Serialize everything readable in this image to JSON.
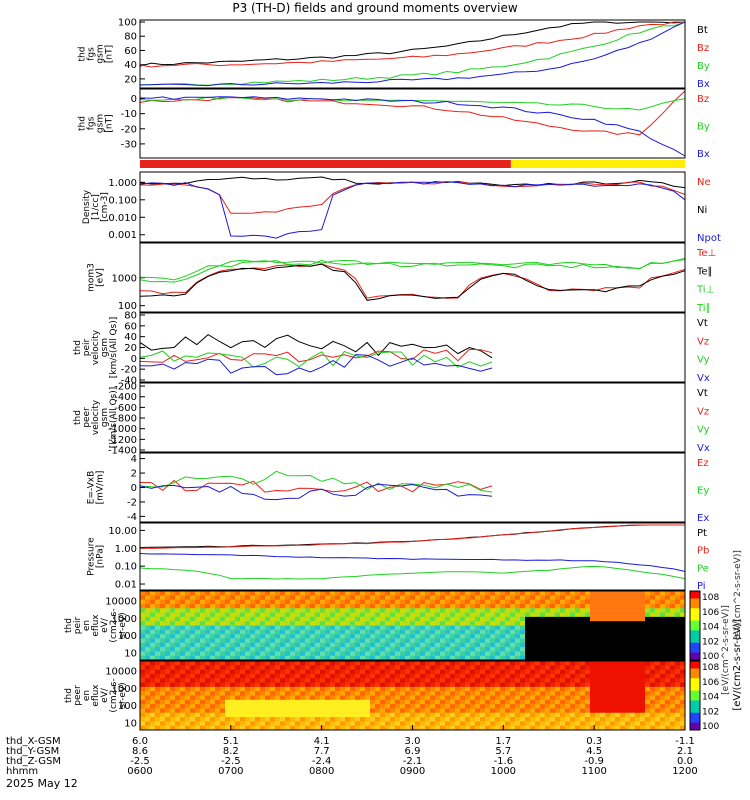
{
  "title": "P3 (TH-D) fields and ground moments overview",
  "date_label": "2025 May 12",
  "colors": {
    "black": "#000000",
    "red": "#e8221a",
    "green": "#20d020",
    "blue": "#1a1ad8",
    "yellow": "#ffee00"
  },
  "panels": [
    {
      "id": "fgs-btot",
      "ylabel": [
        "thd",
        "fgs",
        "gsm",
        "[nT]"
      ],
      "ticks": [
        "100",
        "80",
        "60",
        "40",
        "20"
      ],
      "ticklog": false,
      "ymin": 10,
      "ymax": 100,
      "legend": [
        {
          "text": "Bt",
          "color": "black"
        },
        {
          "text": "Bz",
          "color": "red"
        },
        {
          "text": "By",
          "color": "green"
        },
        {
          "text": "Bx",
          "color": "blue"
        }
      ]
    },
    {
      "id": "fgs-dc",
      "ylabel": [
        "thd",
        "fgs",
        "gsm",
        "[nT]"
      ],
      "ticks": [
        "0",
        "-10",
        "-20",
        "-30"
      ],
      "ticklog": false,
      "ymin": -38,
      "ymax": 5,
      "legend": [
        {
          "text": "Bz",
          "color": "red"
        },
        {
          "text": "By",
          "color": "green"
        },
        {
          "text": "Bx",
          "color": "blue"
        }
      ]
    },
    {
      "id": "density",
      "ylabel": [
        "Density",
        "[1/cc]",
        "[cm-3]"
      ],
      "ticks": [
        "1.000",
        "0.100",
        "0.010",
        "0.001"
      ],
      "ticklog": true,
      "ymin": 0.0005,
      "ymax": 3,
      "legend": [
        {
          "text": "Ne",
          "color": "red"
        },
        {
          "text": "Ni",
          "color": "black"
        },
        {
          "text": "Npot",
          "color": "blue"
        }
      ]
    },
    {
      "id": "temperature",
      "ylabel": [
        "mom3",
        "[eV]"
      ],
      "ticks": [
        "1000",
        "100"
      ],
      "ticklog": true,
      "ymin": 70,
      "ymax": 15000,
      "legend": [
        {
          "text": "Te⊥",
          "color": "red"
        },
        {
          "text": "Te∥",
          "color": "black"
        },
        {
          "text": "Ti⊥",
          "color": "green"
        },
        {
          "text": "Ti∥",
          "color": "green"
        }
      ]
    },
    {
      "id": "peir-velocity",
      "ylabel": [
        "thd",
        "peir",
        "velocity",
        "gsm",
        "[km/s(All Qs)]"
      ],
      "ticks": [
        "80",
        "60",
        "40",
        "20",
        "0",
        "-20",
        "-40"
      ],
      "ticklog": false,
      "ymin": -40,
      "ymax": 80,
      "legend": [
        {
          "text": "Vt",
          "color": "black"
        },
        {
          "text": "Vz",
          "color": "red"
        },
        {
          "text": "Vy",
          "color": "green"
        },
        {
          "text": "Vx",
          "color": "blue"
        }
      ]
    },
    {
      "id": "peer-velocity",
      "ylabel": [
        "thd",
        "peer",
        "velocity",
        "gsm",
        "[km/s(All Qs)]"
      ],
      "ticks": [
        "-200",
        "-400",
        "-600",
        "-800",
        "-1000",
        "-1200",
        "-1400"
      ],
      "ticklog": false,
      "ymin": -1400,
      "ymax": -180,
      "legend": [
        {
          "text": "Vt",
          "color": "black"
        },
        {
          "text": "Vz",
          "color": "red"
        },
        {
          "text": "Vy",
          "color": "green"
        },
        {
          "text": "Vx",
          "color": "blue"
        }
      ]
    },
    {
      "id": "efield",
      "ylabel": [
        "E=-VxB",
        "[mV/m]"
      ],
      "ticks": [
        "4",
        "2",
        "0",
        "-2",
        "-4"
      ],
      "ticklog": false,
      "ymin": -4.5,
      "ymax": 4.5,
      "legend": [
        {
          "text": "Ez",
          "color": "red"
        },
        {
          "text": "Ey",
          "color": "green"
        },
        {
          "text": "Ex",
          "color": "blue"
        }
      ]
    },
    {
      "id": "pressure",
      "ylabel": [
        "Pressure",
        "[nPa]"
      ],
      "ticks": [
        "10.00",
        "1.00",
        "0.10",
        "0.01"
      ],
      "ticklog": true,
      "ymin": 0.006,
      "ymax": 20,
      "legend": [
        {
          "text": "Pt",
          "color": "black"
        },
        {
          "text": "Pb",
          "color": "red"
        },
        {
          "text": "Pe",
          "color": "green"
        },
        {
          "text": "Pi",
          "color": "blue"
        }
      ]
    },
    {
      "id": "peir-spec",
      "ylabel": [
        "thd",
        "peir",
        "en",
        "eflux",
        "eV/",
        "(cm2-s-",
        "sr-eV)"
      ],
      "ticks": [
        "10000",
        "1000",
        "100",
        "10"
      ],
      "ticklog": true,
      "ymin": 5,
      "ymax": 30000,
      "legend": []
    },
    {
      "id": "peer-spec",
      "ylabel": [
        "thd",
        "peer",
        "en",
        "eflux",
        "eV/",
        "(cm2-s-",
        "sr-eV)"
      ],
      "ticks": [
        "10000",
        "1000",
        "100",
        "10"
      ],
      "ticklog": true,
      "ymin": 5,
      "ymax": 30000,
      "legend": []
    }
  ],
  "colorbar": {
    "labels": [
      "10^8",
      "10^6",
      "10^4",
      "10^2",
      "10^0"
    ],
    "units": "[eV/(cm2-s-sr-eV)]",
    "units_top": "[eV/(cm^2-s-sr-eV)]",
    "units_alt": "[eV/(cm^2-s-sr-eV)]"
  },
  "xaxis": {
    "row_labels": [
      "thd_X-GSM",
      "thd_Y-GSM",
      "thd_Z-GSM",
      "hhmm"
    ],
    "columns": [
      {
        "x": "6.0",
        "y": "8.6",
        "z": "-2.5",
        "t": "0600"
      },
      {
        "x": "5.1",
        "y": "8.2",
        "z": "-2.5",
        "t": "0700"
      },
      {
        "x": "4.1",
        "y": "7.7",
        "z": "-2.4",
        "t": "0800"
      },
      {
        "x": "3.0",
        "y": "6.9",
        "z": "-2.1",
        "t": "0900"
      },
      {
        "x": "1.7",
        "y": "5.7",
        "z": "-1.6",
        "t": "1000"
      },
      {
        "x": "0.3",
        "y": "4.5",
        "z": "-0.9",
        "t": "1100"
      },
      {
        "x": "-1.1",
        "y": "2.1",
        "z": "0.0",
        "t": "1200"
      }
    ]
  },
  "chart_data": {
    "type": "line",
    "x_unit": "hhmm UT, 2025 May 12",
    "x": [
      "0600",
      "0630",
      "0700",
      "0730",
      "0800",
      "0830",
      "0900",
      "0930",
      "1000",
      "1030",
      "1100",
      "1130",
      "1200"
    ],
    "series": [
      {
        "name": "Bt",
        "panel": "fgs-btot",
        "values": [
          40,
          42,
          44,
          47,
          50,
          54,
          60,
          68,
          80,
          92,
          100,
          100,
          100
        ]
      },
      {
        "name": "Bz",
        "panel": "fgs-btot",
        "values": [
          38,
          40,
          40,
          42,
          44,
          47,
          50,
          55,
          63,
          72,
          82,
          95,
          100
        ]
      },
      {
        "name": "By",
        "panel": "fgs-btot",
        "values": [
          10,
          12,
          14,
          16,
          18,
          21,
          25,
          30,
          38,
          50,
          66,
          86,
          100
        ]
      },
      {
        "name": "Bx",
        "panel": "fgs-btot",
        "values": [
          10,
          11,
          12,
          13,
          14,
          16,
          18,
          21,
          26,
          34,
          48,
          70,
          100
        ]
      },
      {
        "name": "Bz",
        "panel": "fgs-dc",
        "values": [
          -2,
          -1,
          0,
          -1,
          -2,
          -3,
          -5,
          -8,
          -13,
          -18,
          -22,
          -24,
          5
        ]
      },
      {
        "name": "By",
        "panel": "fgs-dc",
        "values": [
          0,
          -1,
          1,
          0,
          -1,
          -2,
          -1,
          -2,
          -3,
          -4,
          -5,
          -8,
          0
        ]
      },
      {
        "name": "Bx",
        "panel": "fgs-dc",
        "values": [
          1,
          0,
          1,
          0,
          0,
          -1,
          -2,
          -3,
          -6,
          -10,
          -14,
          -22,
          -38
        ]
      },
      {
        "name": "Ni",
        "panel": "density",
        "values": [
          0.8,
          0.8,
          2.0,
          1.5,
          1.8,
          0.8,
          0.9,
          1.0,
          0.6,
          0.8,
          0.9,
          1.1,
          0.5
        ]
      },
      {
        "name": "Ne",
        "panel": "density",
        "values": [
          0.8,
          0.8,
          0.02,
          0.02,
          0.05,
          0.8,
          0.9,
          1.0,
          0.6,
          0.8,
          0.9,
          0.9,
          0.2
        ]
      },
      {
        "name": "Npot",
        "panel": "density",
        "values": [
          0.8,
          0.8,
          0.001,
          0.0007,
          0.002,
          0.8,
          0.9,
          0.9,
          0.6,
          0.7,
          0.7,
          0.8,
          0.1
        ]
      },
      {
        "name": "Te⊥",
        "panel": "temperature",
        "values": [
          300,
          300,
          2000,
          2500,
          3000,
          200,
          250,
          200,
          1500,
          400,
          400,
          500,
          2000
        ]
      },
      {
        "name": "Te∥",
        "panel": "temperature",
        "values": [
          250,
          250,
          1800,
          2200,
          2600,
          180,
          220,
          180,
          1400,
          350,
          350,
          450,
          1800
        ]
      },
      {
        "name": "Ti⊥",
        "panel": "temperature",
        "values": [
          1000,
          1000,
          3500,
          4000,
          4000,
          3500,
          3500,
          3600,
          3000,
          3000,
          3000,
          2500,
          5000
        ]
      },
      {
        "name": "Ti∥",
        "panel": "temperature",
        "values": [
          800,
          800,
          3000,
          3500,
          3500,
          3000,
          3000,
          3100,
          2600,
          2600,
          2600,
          2200,
          4500
        ]
      },
      {
        "name": "Vt",
        "panel": "peir-velocity",
        "values": [
          25,
          30,
          30,
          35,
          30,
          20,
          15,
          15,
          15,
          null,
          null,
          null,
          null
        ]
      },
      {
        "name": "Vz",
        "panel": "peir-velocity",
        "values": [
          5,
          5,
          5,
          0,
          5,
          3,
          2,
          3,
          5,
          null,
          null,
          null,
          null
        ]
      },
      {
        "name": "Vy",
        "panel": "peir-velocity",
        "values": [
          0,
          5,
          0,
          -5,
          0,
          0,
          0,
          -5,
          0,
          null,
          null,
          null,
          null
        ]
      },
      {
        "name": "Vx",
        "panel": "peir-velocity",
        "values": [
          -10,
          -5,
          -15,
          -20,
          -10,
          -5,
          -5,
          -10,
          -10,
          null,
          null,
          null,
          null
        ]
      },
      {
        "name": "Ez",
        "panel": "efield",
        "values": [
          0.5,
          0.2,
          0.3,
          0,
          0.2,
          0,
          0,
          0.1,
          0.5,
          null,
          null,
          null,
          null
        ]
      },
      {
        "name": "Ey",
        "panel": "efield",
        "values": [
          0.3,
          1.0,
          1.0,
          1.5,
          1.0,
          0.5,
          0.5,
          0.5,
          0,
          null,
          null,
          null,
          null
        ]
      },
      {
        "name": "Ex",
        "panel": "efield",
        "values": [
          -0.2,
          -0.3,
          -0.5,
          -1.0,
          -0.5,
          -0.3,
          -0.3,
          -0.5,
          -1.5,
          null,
          null,
          null,
          null
        ]
      },
      {
        "name": "Pt",
        "panel": "pressure",
        "values": [
          1.1,
          1.2,
          1.3,
          1.5,
          1.7,
          2.0,
          2.5,
          3.5,
          5.5,
          9,
          15,
          20,
          20
        ]
      },
      {
        "name": "Pb",
        "panel": "pressure",
        "values": [
          1.0,
          1.1,
          1.2,
          1.4,
          1.6,
          1.9,
          2.4,
          3.4,
          5.4,
          9,
          15,
          20,
          20
        ]
      },
      {
        "name": "Pi",
        "panel": "pressure",
        "values": [
          0.5,
          0.45,
          0.42,
          0.35,
          0.3,
          0.28,
          0.25,
          0.25,
          0.22,
          0.22,
          0.2,
          0.12,
          0.05
        ]
      },
      {
        "name": "Pe",
        "panel": "pressure",
        "values": [
          0.08,
          0.06,
          0.02,
          0.02,
          0.02,
          0.03,
          0.04,
          0.05,
          0.04,
          0.06,
          0.1,
          0.05,
          0.02
        ]
      }
    ],
    "xlabel": "",
    "ylabel": "",
    "mode_bar": [
      {
        "from": "0600",
        "to": "1005",
        "color": "red"
      },
      {
        "from": "1005",
        "to": "1200",
        "color": "yellow"
      }
    ]
  }
}
